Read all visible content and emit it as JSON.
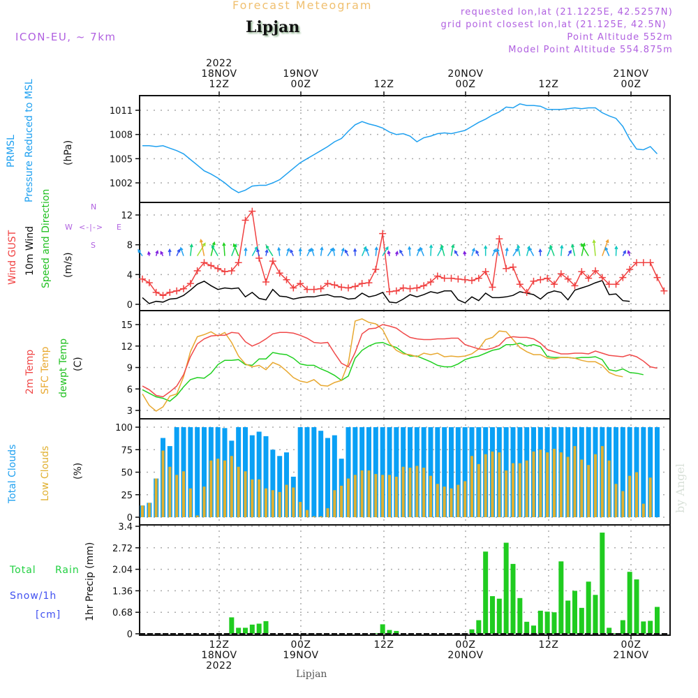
{
  "header": {
    "title": "Forecast Meteogram",
    "station": "Lipjan",
    "model": "ICON-EU, ~ 7km",
    "requested": "requested lon,lat (21.1225E, 42.5257N)",
    "grid_point": "grid point closest lon,lat (21.125E, 42.5N)",
    "point_altitude": "Point Altitude 552m",
    "model_altitude": "Model Point Altitude 554.875m"
  },
  "top_axis": [
    {
      "lines": [
        "2022",
        "18NOV",
        "12Z"
      ]
    },
    {
      "lines": [
        "19NOV",
        "00Z"
      ]
    },
    {
      "lines": [
        "12Z"
      ]
    },
    {
      "lines": [
        "20NOV",
        "00Z"
      ]
    },
    {
      "lines": [
        "12Z"
      ]
    },
    {
      "lines": [
        "21NOV",
        "00Z"
      ]
    }
  ],
  "bottom_axis": [
    {
      "lines": [
        "12Z",
        "18NOV",
        "2022"
      ]
    },
    {
      "lines": [
        "00Z",
        "19NOV"
      ]
    },
    {
      "lines": [
        "12Z"
      ]
    },
    {
      "lines": [
        "00Z",
        "20NOV"
      ]
    },
    {
      "lines": [
        "12Z"
      ]
    },
    {
      "lines": [
        "00Z",
        "21NOV"
      ]
    }
  ],
  "labels": {
    "pressure": [
      "PRMSL",
      "Pressure Reduced to MSL",
      "(hPa)"
    ],
    "wind": [
      "Wind GUST",
      "10m Wind",
      "Speed and Direction",
      "(m/s)"
    ],
    "compass": {
      "n": "N",
      "s": "S",
      "w": "W",
      "e": "E",
      "arrows": "<-|->"
    },
    "temp": [
      "2m Temp",
      "SFC Temp",
      "dewpt Temp",
      "(C)"
    ],
    "clouds": [
      "Total Clouds",
      "Low Clouds",
      "(%)"
    ],
    "precip": [
      "Total",
      "Rain",
      "Snow/1h",
      "[cm]",
      "1hr Precip (mm)"
    ]
  },
  "footer": {
    "station": "Lipjan",
    "watermark": "by Angel"
  },
  "colors": {
    "pressure": "#1ea0f0",
    "gust": "#f04040",
    "wind10m": "#000000",
    "temp2m": "#f04848",
    "sfc": "#e8a830",
    "dewpt": "#20d020",
    "total_clouds": "#0aa0f5",
    "low_clouds": "#e0b030",
    "rain": "#20cc20",
    "meta": "#b060e0"
  },
  "chart_data": [
    {
      "type": "line",
      "title": "PRMSL Pressure Reduced to MSL",
      "ylabel": "(hPa)",
      "ylim": [
        999.5,
        1012.8
      ],
      "yticks": [
        1002,
        1005,
        1008,
        1011
      ],
      "x_start": "18NOV 01Z",
      "x_step_hours": 1,
      "series": [
        {
          "name": "PRMSL",
          "values": [
            1006.6,
            1006.6,
            1006.5,
            1006.6,
            1006.3,
            1006.0,
            1005.6,
            1004.9,
            1004.2,
            1003.5,
            1003.1,
            1002.6,
            1002.0,
            1001.3,
            1000.8,
            1001.1,
            1001.6,
            1001.7,
            1001.7,
            1002.0,
            1002.4,
            1003.1,
            1003.8,
            1004.5,
            1005.0,
            1005.5,
            1006.0,
            1006.5,
            1007.1,
            1007.5,
            1008.4,
            1009.2,
            1009.6,
            1009.3,
            1009.1,
            1008.8,
            1008.3,
            1008.0,
            1008.1,
            1007.8,
            1007.1,
            1007.6,
            1007.8,
            1008.1,
            1008.2,
            1008.1,
            1008.3,
            1008.5,
            1009.0,
            1009.5,
            1009.9,
            1010.4,
            1010.8,
            1011.4,
            1011.3,
            1011.8,
            1011.6,
            1011.6,
            1011.5,
            1011.1,
            1011.1,
            1011.1,
            1011.2,
            1011.3,
            1011.2,
            1011.3,
            1011.3,
            1010.7,
            1010.3,
            1010.0,
            1009.0,
            1007.4,
            1006.2,
            1006.1,
            1006.5,
            1005.6
          ]
        }
      ]
    },
    {
      "type": "line",
      "title": "Wind GUST / 10m Wind Speed and Direction",
      "ylabel": "(m/s)",
      "ylim": [
        -0.6,
        13.7
      ],
      "yticks": [
        0,
        4,
        8,
        12
      ],
      "x_start": "18NOV 01Z",
      "x_step_hours": 1,
      "series": [
        {
          "name": "Wind GUST",
          "values": [
            3.4,
            2.9,
            1.6,
            1.2,
            1.6,
            1.8,
            2.1,
            2.8,
            4.5,
            5.6,
            5.2,
            4.8,
            4.4,
            4.5,
            5.6,
            11.3,
            12.5,
            6.2,
            3.0,
            5.8,
            4.2,
            3.3,
            2.2,
            2.8,
            2.0,
            2.0,
            2.1,
            2.8,
            2.6,
            2.3,
            2.2,
            2.4,
            2.8,
            2.9,
            4.7,
            9.5,
            1.7,
            1.8,
            2.2,
            2.1,
            2.2,
            2.5,
            3.0,
            3.8,
            3.5,
            3.5,
            3.4,
            3.3,
            3.2,
            3.5,
            4.4,
            2.3,
            8.8,
            4.8,
            5.0,
            2.7,
            1.6,
            3.1,
            3.3,
            3.5,
            2.7,
            4.1,
            3.4,
            2.5,
            4.4,
            3.5,
            4.5,
            3.6,
            2.7,
            2.7,
            3.6,
            4.7,
            5.6,
            5.6,
            5.6,
            3.6,
            1.8
          ]
        },
        {
          "name": "10m Wind",
          "values": [
            0.9,
            0.1,
            0.4,
            0.3,
            0.7,
            0.8,
            1.2,
            1.9,
            2.7,
            3.1,
            2.5,
            2.0,
            2.2,
            2.1,
            2.2,
            1.0,
            1.6,
            0.8,
            0.6,
            2.0,
            1.1,
            1.0,
            0.7,
            0.9,
            1.0,
            1.0,
            1.2,
            1.3,
            1.0,
            1.0,
            0.7,
            0.8,
            1.5,
            1.0,
            1.2,
            1.6,
            0.3,
            0.2,
            0.7,
            1.3,
            1.0,
            1.3,
            1.7,
            1.5,
            1.8,
            1.8,
            0.6,
            0.2,
            1.0,
            0.5,
            1.5,
            0.9,
            0.9,
            1.0,
            1.2,
            1.7,
            1.5,
            1.3,
            0.7,
            1.5,
            1.8,
            1.6,
            0.6,
            1.9,
            2.2,
            2.5,
            2.9,
            3.2,
            1.3,
            1.4,
            0.5,
            0.4
          ]
        }
      ],
      "direction_arrows": "hourly colored vectors along ~6.5 m/s line; colors cycle by speed (violet/blue light, cyan/green moderate, yellow/orange strong)"
    },
    {
      "type": "line",
      "title": "2m Temp / SFC Temp / dewpt Temp",
      "ylabel": "(C)",
      "ylim": [
        2.1,
        16.5
      ],
      "yticks": [
        3,
        6,
        9,
        12,
        15
      ],
      "x_start": "18NOV 01Z",
      "x_step_hours": 1,
      "series": [
        {
          "name": "2m Temp",
          "values": [
            6.4,
            5.9,
            5.1,
            4.9,
            5.6,
            6.4,
            8.0,
            10.5,
            12.3,
            13.0,
            13.4,
            13.5,
            13.5,
            13.9,
            13.8,
            12.6,
            12.0,
            12.4,
            13.0,
            13.7,
            13.9,
            13.9,
            13.8,
            13.5,
            13.1,
            12.5,
            12.4,
            12.5,
            11.0,
            9.6,
            9.1,
            11.1,
            13.7,
            14.4,
            14.5,
            15.0,
            14.8,
            14.5,
            13.8,
            13.2,
            13.0,
            12.9,
            12.9,
            13.0,
            13.0,
            13.1,
            13.1,
            12.2,
            11.9,
            11.6,
            11.5,
            11.7,
            12.1,
            13.1,
            13.3,
            13.2,
            13.2,
            13.0,
            12.4,
            11.5,
            11.2,
            10.9,
            10.9,
            11.0,
            11.0,
            10.9,
            11.3,
            11.0,
            10.7,
            10.6,
            10.5,
            10.8,
            10.5,
            9.9,
            9.1,
            8.9
          ]
        },
        {
          "name": "SFC Temp",
          "values": [
            5.3,
            3.7,
            2.9,
            3.5,
            5.0,
            5.3,
            7.7,
            11.2,
            13.3,
            13.6,
            14.0,
            13.4,
            13.9,
            12.5,
            10.6,
            9.5,
            9.1,
            9.3,
            8.7,
            9.7,
            9.3,
            8.5,
            7.6,
            7.1,
            6.9,
            7.3,
            6.5,
            6.4,
            6.9,
            7.2,
            9.6,
            15.5,
            15.8,
            15.3,
            15.1,
            14.3,
            12.4,
            11.4,
            10.9,
            10.8,
            10.5,
            11.0,
            10.8,
            11.0,
            10.5,
            10.6,
            10.5,
            10.6,
            10.9,
            11.6,
            12.9,
            13.2,
            14.1,
            14.0,
            12.9,
            11.8,
            11.2,
            10.8,
            10.8,
            10.3,
            10.2,
            10.4,
            10.4,
            10.3,
            10.0,
            9.8,
            9.8,
            9.3,
            8.3,
            7.9,
            7.7
          ]
        },
        {
          "name": "dewpt Temp",
          "values": [
            5.9,
            5.4,
            4.9,
            4.7,
            4.3,
            5.1,
            6.3,
            7.3,
            7.6,
            7.5,
            8.2,
            9.4,
            10.0,
            10.0,
            10.1,
            9.4,
            9.3,
            10.2,
            10.2,
            11.1,
            10.9,
            10.8,
            10.3,
            9.5,
            9.3,
            9.3,
            8.8,
            8.4,
            7.9,
            7.2,
            7.8,
            10.3,
            11.4,
            12.0,
            12.4,
            12.5,
            12.1,
            11.8,
            11.1,
            10.6,
            10.6,
            10.2,
            9.8,
            9.3,
            9.1,
            9.1,
            9.5,
            10.1,
            10.4,
            10.6,
            11.0,
            11.4,
            11.6,
            12.2,
            12.2,
            12.4,
            12.0,
            12.2,
            11.9,
            10.5,
            10.4,
            10.4,
            10.4,
            10.3,
            10.4,
            10.4,
            10.5,
            10.1,
            8.7,
            8.5,
            8.8,
            8.3,
            8.2,
            8.0
          ]
        }
      ]
    },
    {
      "type": "bar",
      "title": "Total Clouds / Low Clouds",
      "ylabel": "(%)",
      "ylim": [
        0,
        100
      ],
      "yticks": [
        0,
        25,
        50,
        75,
        100
      ],
      "x_start": "18NOV 01Z",
      "x_step_hours": 1,
      "series": [
        {
          "name": "Total Clouds",
          "values": [
            13,
            16,
            43,
            88,
            79,
            100,
            100,
            100,
            100,
            100,
            100,
            100,
            99,
            85,
            100,
            100,
            91,
            95,
            90,
            75,
            68,
            72,
            45,
            100,
            100,
            100,
            96,
            88,
            91,
            65,
            100,
            100,
            100,
            100,
            100,
            100,
            100,
            100,
            100,
            100,
            100,
            100,
            100,
            100,
            100,
            100,
            100,
            100,
            100,
            100,
            100,
            100,
            100,
            100,
            100,
            100,
            100,
            100,
            100,
            100,
            100,
            100,
            100,
            100,
            100,
            100,
            100,
            100,
            100,
            100,
            100,
            100,
            100,
            100,
            100,
            100
          ]
        },
        {
          "name": "Low Clouds",
          "values": [
            13,
            16,
            43,
            74,
            56,
            47,
            51,
            32,
            2,
            34,
            63,
            65,
            63,
            68,
            56,
            51,
            42,
            42,
            32,
            30,
            28,
            36,
            33,
            17,
            8,
            1,
            1,
            10,
            30,
            35,
            43,
            47,
            52,
            52,
            48,
            47,
            47,
            45,
            56,
            55,
            57,
            55,
            46,
            37,
            34,
            32,
            36,
            40,
            68,
            59,
            70,
            73,
            72,
            52,
            60,
            60,
            63,
            73,
            75,
            72,
            76,
            72,
            67,
            79,
            64,
            58,
            70,
            79,
            63,
            37,
            29,
            46,
            50,
            15,
            44
          ]
        }
      ]
    },
    {
      "type": "bar",
      "title": "Total Rain / Snow 1h",
      "ylabel": "1hr Precip (mm)",
      "ylim": [
        0,
        3.4
      ],
      "yticks": [
        0,
        0.68,
        1.36,
        2.04,
        2.72,
        3.4
      ],
      "x_start": "18NOV 01Z",
      "x_step_hours": 1,
      "series": [
        {
          "name": "Total Rain",
          "values": [
            0,
            0,
            0,
            0,
            0,
            0,
            0,
            0,
            0,
            0,
            0,
            0,
            0,
            0.52,
            0.19,
            0.19,
            0.29,
            0.32,
            0.4,
            0,
            0,
            0,
            0,
            0,
            0,
            0,
            0,
            0,
            0,
            0,
            0,
            0,
            0,
            0,
            0.02,
            0.3,
            0.12,
            0.09,
            0.02,
            0,
            0,
            0,
            0,
            0,
            0,
            0,
            0,
            0,
            0.14,
            0.43,
            2.6,
            1.19,
            1.11,
            2.88,
            2.21,
            1.13,
            0.38,
            0.26,
            0.73,
            0.7,
            0.68,
            2.29,
            1.05,
            1.36,
            0.82,
            1.65,
            1.23,
            3.2,
            0.19,
            0.02,
            0.43,
            1.96,
            1.72,
            0.39,
            0.41,
            0.85,
            0.02
          ]
        }
      ]
    }
  ]
}
